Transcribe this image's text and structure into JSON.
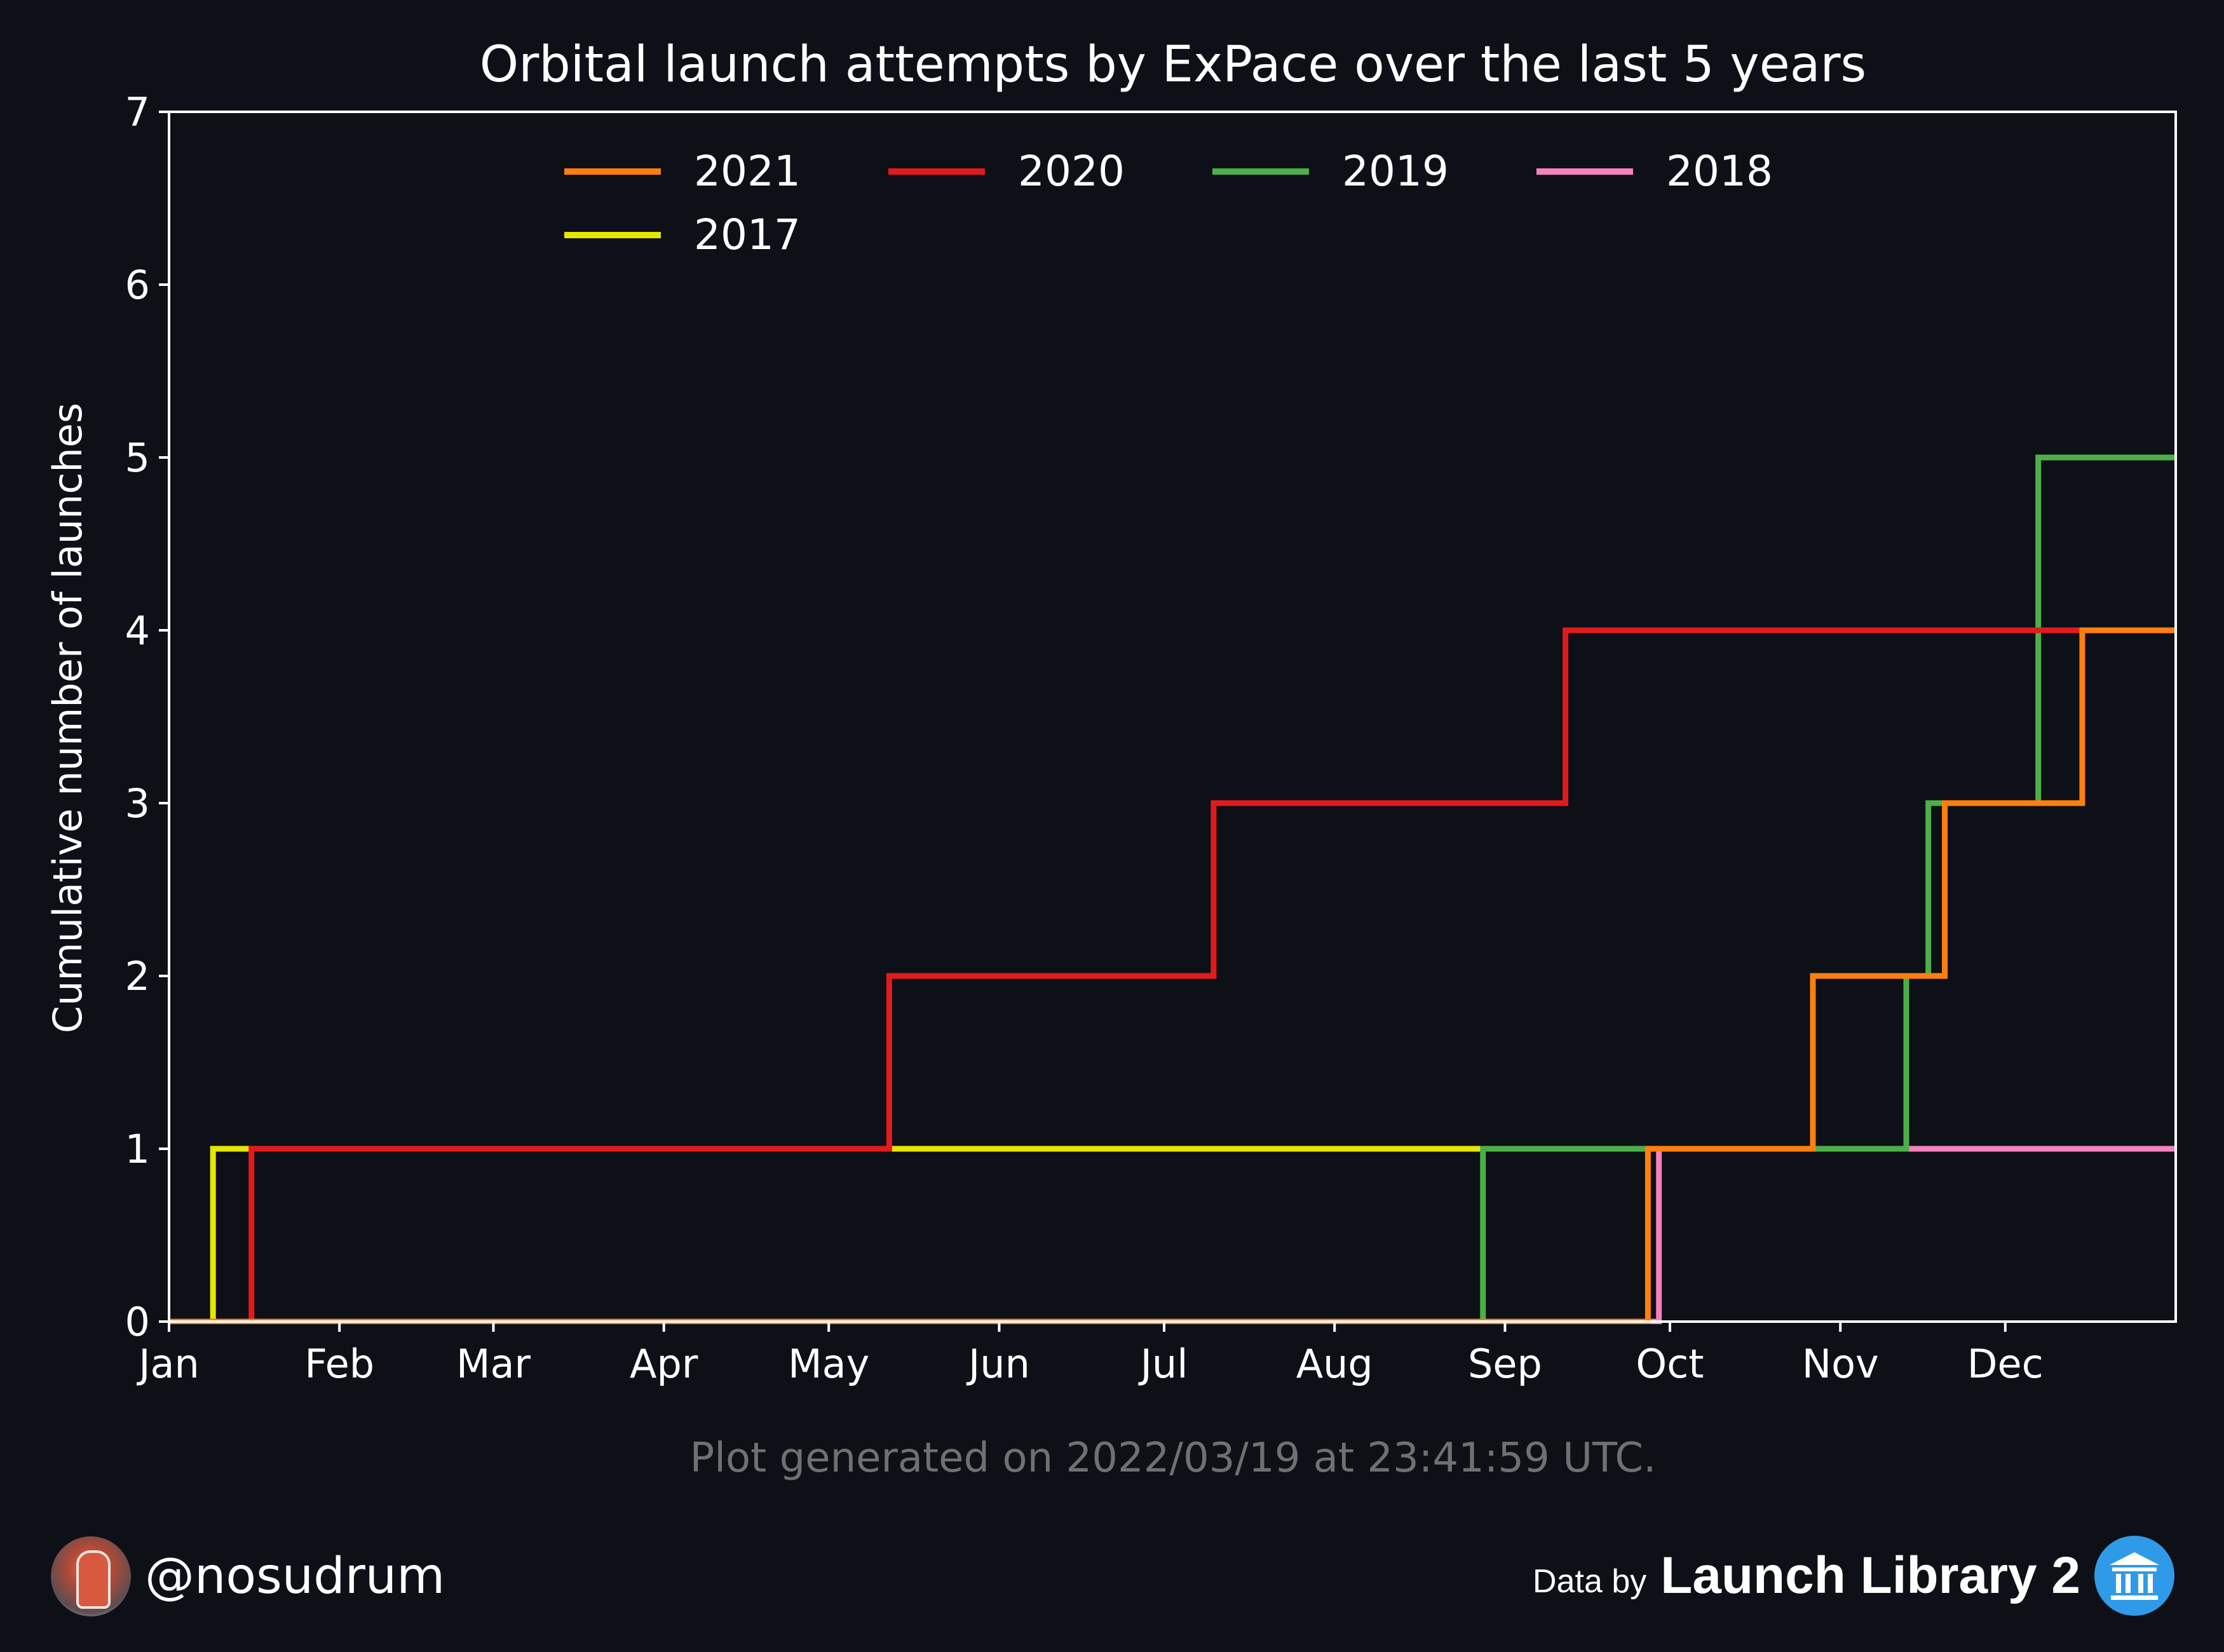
{
  "chart_data": {
    "type": "line",
    "step": "post",
    "title": "Orbital launch attempts by ExPace over the last 5 years",
    "xlabel": "",
    "ylabel": "Cumulative number of launches",
    "xlim": [
      "01-01",
      "12-31"
    ],
    "ylim": [
      0,
      7
    ],
    "yticks": [
      0,
      1,
      2,
      3,
      4,
      5,
      6,
      7
    ],
    "xtick_labels": [
      {
        "label": "Jan",
        "date": "01-01"
      },
      {
        "label": "Feb",
        "date": "02-01"
      },
      {
        "label": "Mar",
        "date": "03-01"
      },
      {
        "label": "Apr",
        "date": "04-01"
      },
      {
        "label": "May",
        "date": "05-01"
      },
      {
        "label": "Jun",
        "date": "06-01"
      },
      {
        "label": "Jul",
        "date": "07-01"
      },
      {
        "label": "Aug",
        "date": "08-01"
      },
      {
        "label": "Sep",
        "date": "09-01"
      },
      {
        "label": "Oct",
        "date": "10-01"
      },
      {
        "label": "Nov",
        "date": "11-01"
      },
      {
        "label": "Dec",
        "date": "12-01"
      }
    ],
    "grid": false,
    "legend": "top-center",
    "series": [
      {
        "name": "2021",
        "color": "#ff7f0e",
        "points": [
          [
            "01-01",
            0
          ],
          [
            "09-27",
            1
          ],
          [
            "10-27",
            2
          ],
          [
            "11-20",
            3
          ],
          [
            "12-15",
            4
          ],
          [
            "12-31",
            4
          ]
        ]
      },
      {
        "name": "2020",
        "color": "#e31a1c",
        "points": [
          [
            "01-01",
            0
          ],
          [
            "01-16",
            1
          ],
          [
            "05-12",
            2
          ],
          [
            "07-10",
            3
          ],
          [
            "09-12",
            4
          ],
          [
            "12-31",
            4
          ]
        ]
      },
      {
        "name": "2019",
        "color": "#4daf4a",
        "points": [
          [
            "01-01",
            0
          ],
          [
            "08-28",
            1
          ],
          [
            "11-13",
            2
          ],
          [
            "11-17",
            3
          ],
          [
            "12-07",
            5
          ],
          [
            "12-31",
            5
          ]
        ]
      },
      {
        "name": "2018",
        "color": "#f781bf",
        "points": [
          [
            "01-01",
            0
          ],
          [
            "09-29",
            1
          ],
          [
            "12-31",
            1
          ]
        ]
      },
      {
        "name": "2017",
        "color": "#e6e600",
        "points": [
          [
            "01-01",
            0
          ],
          [
            "01-09",
            1
          ],
          [
            "12-31",
            1
          ]
        ]
      }
    ],
    "annotation": "Plot generated on 2022/03/19 at 23:41:59 UTC."
  },
  "footer": {
    "handle": "@nosudrum",
    "data_by": "Data by",
    "source": "Launch Library 2",
    "avatar_icon": "astronaut-avatar",
    "source_icon": "library-building-icon"
  }
}
